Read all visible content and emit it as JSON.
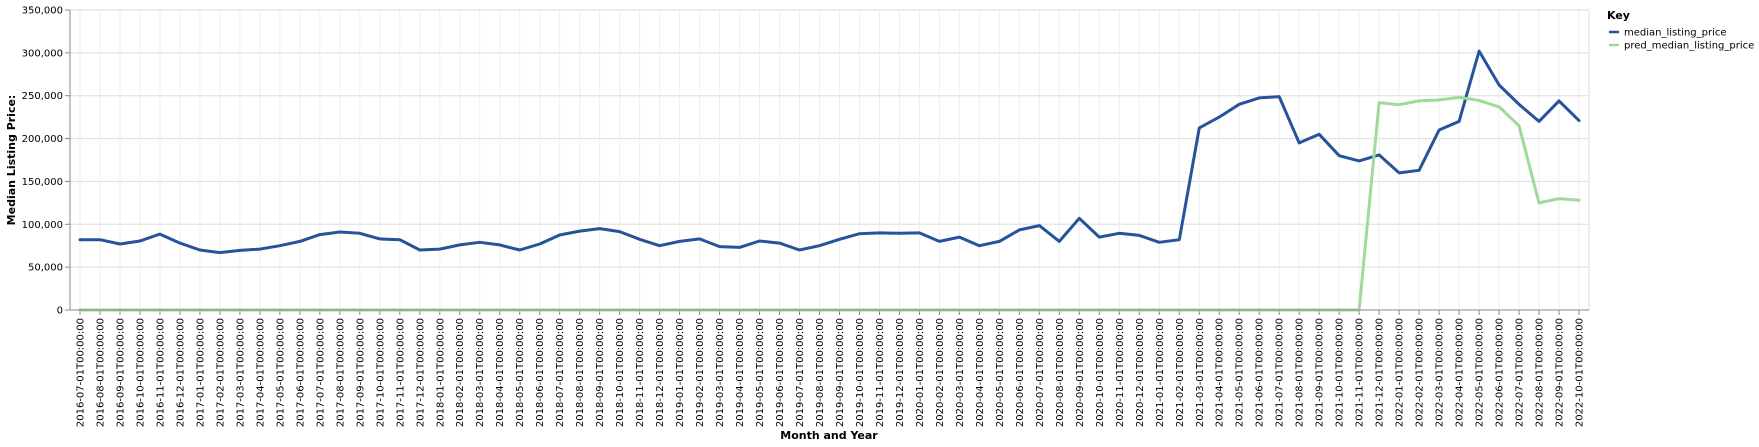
{
  "chart_data": {
    "type": "line",
    "xlabel": "Month and Year",
    "ylabel": "Median Listing Price:",
    "ylim": [
      0,
      350000
    ],
    "yticks": [
      0,
      50000,
      100000,
      150000,
      200000,
      250000,
      300000,
      350000
    ],
    "ytick_labels": [
      "0",
      "50,000",
      "100,000",
      "150,000",
      "200,000",
      "250,000",
      "300,000",
      "350,000"
    ],
    "grid": true,
    "legend": {
      "title": "Key",
      "placement": "top-right"
    },
    "x": [
      "2016-07-01T00:00:00",
      "2016-08-01T00:00:00",
      "2016-09-01T00:00:00",
      "2016-10-01T00:00:00",
      "2016-11-01T00:00:00",
      "2016-12-01T00:00:00",
      "2017-01-01T00:00:00",
      "2017-02-01T00:00:00",
      "2017-03-01T00:00:00",
      "2017-04-01T00:00:00",
      "2017-05-01T00:00:00",
      "2017-06-01T00:00:00",
      "2017-07-01T00:00:00",
      "2017-08-01T00:00:00",
      "2017-09-01T00:00:00",
      "2017-10-01T00:00:00",
      "2017-11-01T00:00:00",
      "2017-12-01T00:00:00",
      "2018-01-01T00:00:00",
      "2018-02-01T00:00:00",
      "2018-03-01T00:00:00",
      "2018-04-01T00:00:00",
      "2018-05-01T00:00:00",
      "2018-06-01T00:00:00",
      "2018-07-01T00:00:00",
      "2018-08-01T00:00:00",
      "2018-09-01T00:00:00",
      "2018-10-01T00:00:00",
      "2018-11-01T00:00:00",
      "2018-12-01T00:00:00",
      "2019-01-01T00:00:00",
      "2019-02-01T00:00:00",
      "2019-03-01T00:00:00",
      "2019-04-01T00:00:00",
      "2019-05-01T00:00:00",
      "2019-06-01T00:00:00",
      "2019-07-01T00:00:00",
      "2019-08-01T00:00:00",
      "2019-09-01T00:00:00",
      "2019-10-01T00:00:00",
      "2019-11-01T00:00:00",
      "2019-12-01T00:00:00",
      "2020-01-01T00:00:00",
      "2020-02-01T00:00:00",
      "2020-03-01T00:00:00",
      "2020-04-01T00:00:00",
      "2020-05-01T00:00:00",
      "2020-06-01T00:00:00",
      "2020-07-01T00:00:00",
      "2020-08-01T00:00:00",
      "2020-09-01T00:00:00",
      "2020-10-01T00:00:00",
      "2020-11-01T00:00:00",
      "2020-12-01T00:00:00",
      "2021-01-01T00:00:00",
      "2021-02-01T00:00:00",
      "2021-03-01T00:00:00",
      "2021-04-01T00:00:00",
      "2021-05-01T00:00:00",
      "2021-06-01T00:00:00",
      "2021-07-01T00:00:00",
      "2021-08-01T00:00:00",
      "2021-09-01T00:00:00",
      "2021-10-01T00:00:00",
      "2021-11-01T00:00:00",
      "2021-12-01T00:00:00",
      "2022-01-01T00:00:00",
      "2022-02-01T00:00:00",
      "2022-03-01T00:00:00",
      "2022-04-01T00:00:00",
      "2022-05-01T00:00:00",
      "2022-06-01T00:00:00",
      "2022-07-01T00:00:00",
      "2022-08-01T00:00:00",
      "2022-09-01T00:00:00",
      "2022-10-01T00:00:00"
    ],
    "series": [
      {
        "name": "median_listing_price",
        "color": "#26539c",
        "values": [
          82000,
          82000,
          77000,
          80500,
          88500,
          78000,
          70000,
          67000,
          69500,
          71000,
          75000,
          80000,
          88000,
          91000,
          89500,
          83000,
          82000,
          70000,
          71000,
          76000,
          79000,
          76000,
          70000,
          77000,
          87500,
          92000,
          95000,
          91500,
          82500,
          75000,
          80000,
          83000,
          74000,
          73000,
          80500,
          78000,
          70000,
          75000,
          82500,
          89000,
          90000,
          89500,
          90000,
          80000,
          85000,
          75000,
          80000,
          93500,
          98500,
          80000,
          107000,
          85000,
          89500,
          87000,
          79000,
          82000,
          212500,
          225000,
          240000,
          247500,
          249000,
          195000,
          205000,
          180000,
          174000,
          181000,
          160000,
          163000,
          210000,
          220000,
          302000,
          262500,
          240000,
          220000,
          244000,
          221000
        ]
      },
      {
        "name": "pred_median_listing_price",
        "color": "#a1d99b",
        "values": [
          0,
          0,
          0,
          0,
          0,
          0,
          0,
          0,
          0,
          0,
          0,
          0,
          0,
          0,
          0,
          0,
          0,
          0,
          0,
          0,
          0,
          0,
          0,
          0,
          0,
          0,
          0,
          0,
          0,
          0,
          0,
          0,
          0,
          0,
          0,
          0,
          0,
          0,
          0,
          0,
          0,
          0,
          0,
          0,
          0,
          0,
          0,
          0,
          0,
          0,
          0,
          0,
          0,
          0,
          0,
          0,
          0,
          0,
          0,
          0,
          0,
          0,
          0,
          0,
          0,
          242000,
          239500,
          244000,
          245000,
          248000,
          244500,
          237000,
          215000,
          125000,
          130000,
          128000
        ]
      }
    ]
  }
}
